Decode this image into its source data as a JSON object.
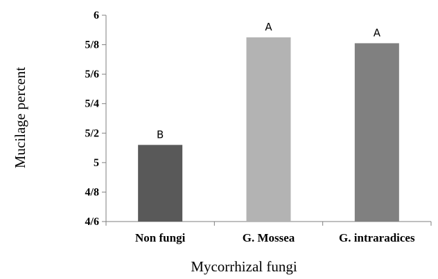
{
  "chart_data": {
    "type": "bar",
    "categories": [
      "Non fungi",
      "G. Mossea",
      "G. intraradices"
    ],
    "values": [
      5.12,
      5.85,
      5.81
    ],
    "data_labels": [
      "B",
      "A",
      "A"
    ],
    "colors": [
      "#595959",
      "#b3b3b3",
      "#808080"
    ],
    "xlabel": "Mycorrhizal fungi",
    "ylabel": "Mucilage percent",
    "ylim": [
      4.6,
      6
    ],
    "yticks": [
      4.6,
      4.8,
      5,
      5.2,
      5.4,
      5.6,
      5.8,
      6
    ],
    "ytick_labels": [
      "4/6",
      "4/8",
      "5",
      "5/2",
      "5/4",
      "5/6",
      "5/8",
      "6"
    ],
    "grid": false,
    "legend": "none"
  }
}
